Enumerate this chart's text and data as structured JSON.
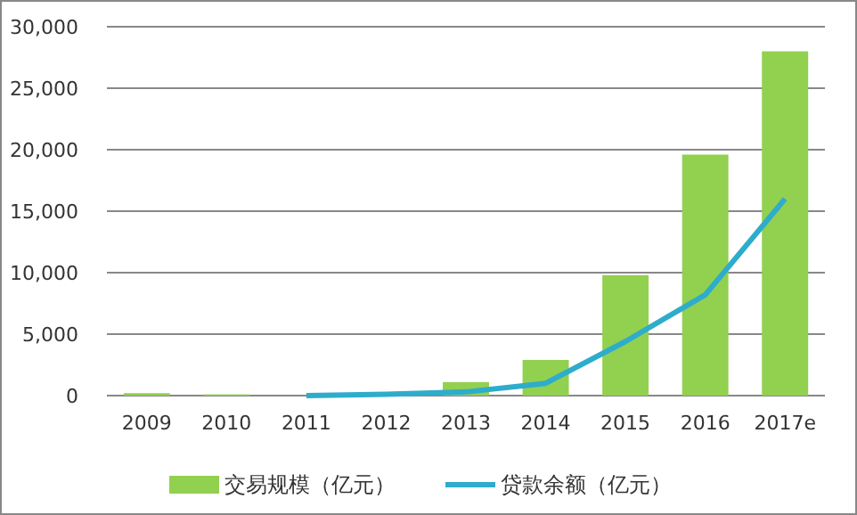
{
  "chart_data": {
    "type": "bar",
    "categories": [
      "2009",
      "2010",
      "2011",
      "2012",
      "2013",
      "2014",
      "2015",
      "2016",
      "2017e"
    ],
    "series": [
      {
        "name": "交易规模（亿元）",
        "color": "#92d050",
        "values": [
          200,
          100,
          null,
          null,
          1100,
          2900,
          9800,
          19600,
          28000
        ]
      },
      {
        "name": "贷款余额（亿元）",
        "type": "line",
        "color": "#2eaccc",
        "values": [
          null,
          null,
          0,
          100,
          300,
          1000,
          4400,
          8200,
          16000
        ]
      }
    ],
    "ylim": [
      0,
      30000
    ],
    "yticks": [
      {
        "value": 0,
        "label": "0"
      },
      {
        "value": 5000,
        "label": "5,000"
      },
      {
        "value": 10000,
        "label": "10,000"
      },
      {
        "value": 15000,
        "label": "15,000"
      },
      {
        "value": 20000,
        "label": "20,000"
      },
      {
        "value": 25000,
        "label": "25,000"
      },
      {
        "value": 30000,
        "label": "30,000"
      }
    ],
    "grid": "y",
    "legend": "bottom",
    "marker": "none"
  }
}
